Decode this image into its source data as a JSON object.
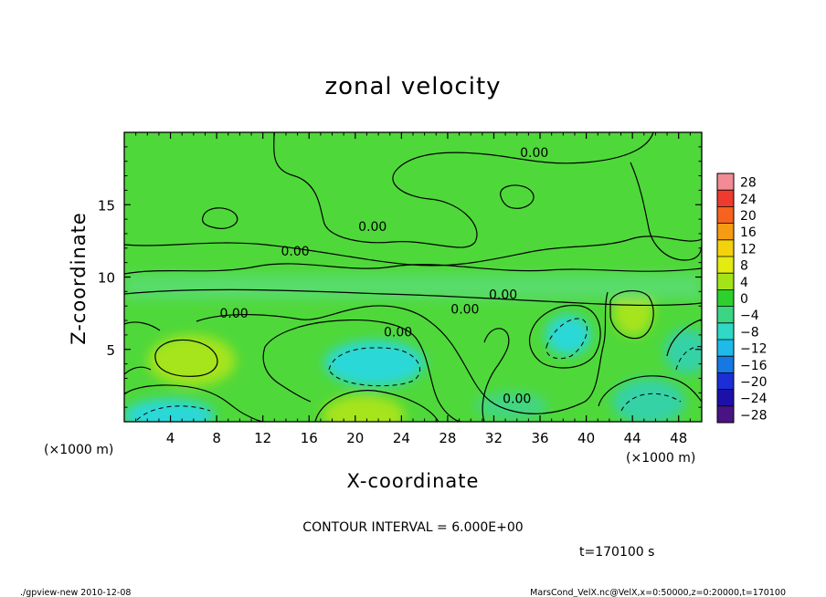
{
  "chart_data": {
    "type": "heatmap",
    "title": "zonal velocity",
    "xlabel": "X-coordinate",
    "ylabel": "Z-coordinate",
    "x_unit": "(×1000 m)",
    "y_unit": "(×1000 m)",
    "xlim": [
      0,
      50
    ],
    "ylim": [
      0,
      20
    ],
    "x_ticks": [
      "4",
      "8",
      "12",
      "16",
      "20",
      "24",
      "28",
      "32",
      "36",
      "40",
      "44",
      "48"
    ],
    "x_tick_values": [
      4,
      8,
      12,
      16,
      20,
      24,
      28,
      32,
      36,
      40,
      44,
      48
    ],
    "y_ticks": [
      "5",
      "10",
      "15"
    ],
    "y_tick_values": [
      5,
      10,
      15
    ],
    "colorbar": {
      "labels": [
        "28",
        "24",
        "20",
        "16",
        "12",
        "8",
        "4",
        "0",
        "−4",
        "−8",
        "−12",
        "−16",
        "−20",
        "−24",
        "−28"
      ],
      "levels": [
        30,
        26,
        22,
        18,
        14,
        10,
        6,
        2,
        -2,
        -6,
        -10,
        -14,
        -18,
        -22,
        -26,
        -30
      ],
      "colors": [
        "#f38b95",
        "#ee3b2d",
        "#f5631e",
        "#f59c14",
        "#f2d20c",
        "#e2ec11",
        "#a4e416",
        "#2ed02e",
        "#3bd684",
        "#30d8c6",
        "#1ebbe8",
        "#1679e3",
        "#1c2ed8",
        "#1d10a8",
        "#4a1384"
      ]
    },
    "contour_labels": [
      {
        "text": "0.00",
        "x": 35.5,
        "z": 18.6
      },
      {
        "text": "0.00",
        "x": 21.5,
        "z": 13.5
      },
      {
        "text": "0.00",
        "x": 14.8,
        "z": 11.8
      },
      {
        "text": "0.00",
        "x": 32.8,
        "z": 8.8
      },
      {
        "text": "0.00",
        "x": 29.5,
        "z": 7.8
      },
      {
        "text": "0.00",
        "x": 9.5,
        "z": 7.5
      },
      {
        "text": "0.00",
        "x": 23.7,
        "z": 6.2
      },
      {
        "text": "0.00",
        "x": 34.0,
        "z": 1.6
      }
    ],
    "contour_interval_text": "CONTOUR INTERVAL = 6.000E+00",
    "time_text": "t=170100 s"
  },
  "footer": {
    "left": "./gpview-new   2010-12-08",
    "right": "MarsCond_VelX.nc@VelX,x=0:50000,z=0:20000,t=170100"
  },
  "colors": {
    "background_field": "#4fd83a",
    "warm_patch": "#a6e41c",
    "cool_patch": "#36d2a6",
    "cold_patch": "#2ad8d8"
  }
}
